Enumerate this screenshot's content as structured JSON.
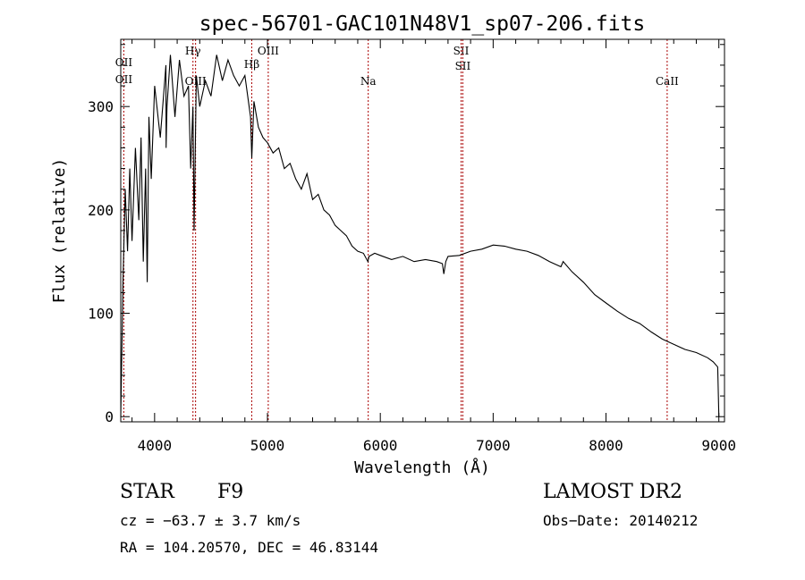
{
  "title": "spec-56701-GAC101N48V1_sp07-206.fits",
  "chart_data": {
    "type": "line",
    "xlabel": "Wavelength (Å)",
    "ylabel": "Flux (relative)",
    "xlim": [
      3700,
      9050
    ],
    "ylim": [
      -5,
      365
    ],
    "x_ticks": [
      4000,
      5000,
      6000,
      7000,
      8000,
      9000
    ],
    "y_ticks": [
      0,
      100,
      200,
      300
    ],
    "line_color": "#000000",
    "marker_color": "#aa0000",
    "series": [
      {
        "x": [
          3700,
          3720,
          3740,
          3760,
          3780,
          3800,
          3830,
          3860,
          3880,
          3900,
          3920,
          3935,
          3950,
          3970,
          4000,
          4050,
          4100,
          4102,
          4110,
          4140,
          4180,
          4220,
          4260,
          4300,
          4320,
          4340,
          4350,
          4370,
          4400,
          4450,
          4500,
          4550,
          4600,
          4650,
          4700,
          4750,
          4800,
          4850,
          4861,
          4880,
          4920,
          4960,
          5000,
          5050,
          5100,
          5150,
          5200,
          5250,
          5300,
          5350,
          5400,
          5450,
          5500,
          5550,
          5600,
          5650,
          5700,
          5750,
          5800,
          5850,
          5890,
          5900,
          5950,
          6000,
          6100,
          6200,
          6300,
          6400,
          6500,
          6550,
          6563,
          6580,
          6600,
          6700,
          6800,
          6900,
          7000,
          7100,
          7200,
          7300,
          7400,
          7500,
          7600,
          7620,
          7700,
          7800,
          7900,
          8000,
          8100,
          8200,
          8300,
          8400,
          8500,
          8600,
          8700,
          8800,
          8900,
          8950,
          8990,
          9000
        ],
        "y": [
          0,
          130,
          220,
          160,
          240,
          170,
          260,
          190,
          270,
          150,
          240,
          130,
          290,
          230,
          320,
          270,
          340,
          260,
          300,
          350,
          290,
          345,
          310,
          320,
          240,
          300,
          180,
          330,
          300,
          325,
          310,
          350,
          325,
          345,
          330,
          320,
          330,
          290,
          250,
          305,
          280,
          270,
          265,
          255,
          260,
          240,
          245,
          230,
          220,
          235,
          210,
          215,
          200,
          195,
          185,
          180,
          175,
          165,
          160,
          158,
          150,
          155,
          158,
          156,
          152,
          155,
          150,
          152,
          150,
          148,
          138,
          150,
          155,
          156,
          160,
          162,
          166,
          165,
          162,
          160,
          156,
          150,
          145,
          150,
          140,
          130,
          118,
          110,
          102,
          95,
          90,
          82,
          75,
          70,
          65,
          62,
          57,
          53,
          48,
          0
        ]
      }
    ],
    "line_markers": [
      {
        "wavelength": 3727,
        "labels": [
          "OII",
          "OII"
        ]
      },
      {
        "wavelength": 4340,
        "labels": [
          "Hγ"
        ]
      },
      {
        "wavelength": 4363,
        "labels": [
          "OIII"
        ]
      },
      {
        "wavelength": 4861,
        "labels": [
          "Hβ"
        ]
      },
      {
        "wavelength": 5007,
        "labels": [
          "OIII"
        ]
      },
      {
        "wavelength": 5893,
        "labels": [
          "Na"
        ]
      },
      {
        "wavelength": 6716,
        "labels": [
          "SII"
        ]
      },
      {
        "wavelength": 6731,
        "labels": [
          "SII"
        ]
      },
      {
        "wavelength": 8542,
        "labels": [
          "CaII"
        ]
      }
    ]
  },
  "info": {
    "object_class": "STAR",
    "subclass": "F9",
    "survey": "LAMOST DR2",
    "redshift": "cz = −63.7 ± 3.7 km/s",
    "obs_date": "Obs−Date: 20140212",
    "coords": "RA = 104.20570, DEC =  46.83144"
  }
}
